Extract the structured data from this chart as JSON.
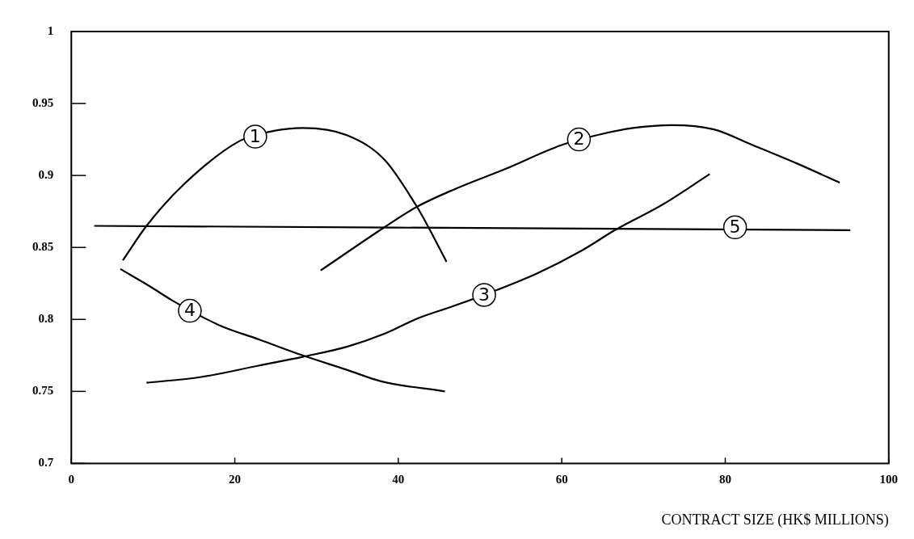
{
  "chart_data": {
    "type": "line",
    "xlabel": "CONTRACT SIZE (HK$ MILLIONS)",
    "xlim": [
      0,
      100
    ],
    "xticks": [
      0,
      20,
      40,
      60,
      80,
      100
    ],
    "ylim": [
      0.7,
      1
    ],
    "yticks": [
      0.7,
      0.75,
      0.8,
      0.85,
      0.9,
      0.95,
      1
    ],
    "grid": false,
    "legend": false,
    "marker": "none",
    "line_style": "solid",
    "series": [
      {
        "color": "#000000",
        "x": [
          6.3,
          9.2,
          13.8,
          20.6,
          24.8,
          28.3,
          33.7,
          38.3,
          42.2,
          43.6,
          45.9
        ],
        "values": [
          0.841,
          0.865,
          0.894,
          0.924,
          0.931,
          0.933,
          0.928,
          0.911,
          0.879,
          0.865,
          0.84
        ]
      },
      {
        "color": "#000000",
        "x": [
          30.5,
          38.3,
          42.2,
          46.7,
          53.3,
          59.9,
          64.3,
          68.7,
          73.5,
          78.6,
          83.4,
          88.9,
          94.0
        ],
        "values": [
          0.834,
          0.864,
          0.878,
          0.89,
          0.905,
          0.921,
          0.928,
          0.933,
          0.935,
          0.932,
          0.921,
          0.908,
          0.895
        ]
      },
      {
        "color": "#000000",
        "x": [
          9.2,
          15.9,
          23.0,
          28.3,
          33.7,
          38.3,
          42.5,
          46.6,
          50.5,
          57.0,
          62.5,
          66.5,
          72.4,
          78.1
        ],
        "values": [
          0.756,
          0.76,
          0.768,
          0.774,
          0.781,
          0.79,
          0.801,
          0.809,
          0.817,
          0.832,
          0.848,
          0.862,
          0.88,
          0.901
        ]
      },
      {
        "color": "#000000",
        "x": [
          6.0,
          9.6,
          12.4,
          18.1,
          23.0,
          28.3,
          33.7,
          37.9,
          45.7
        ],
        "values": [
          0.835,
          0.823,
          0.813,
          0.796,
          0.786,
          0.775,
          0.765,
          0.757,
          0.75
        ]
      },
      {
        "color": "#000000",
        "x": [
          2.8,
          95.3
        ],
        "values": [
          0.865,
          0.862
        ]
      }
    ],
    "annotations": [
      {
        "text": "1",
        "x": 22.5,
        "y": 0.927
      },
      {
        "text": "2",
        "x": 62.1,
        "y": 0.925
      },
      {
        "text": "3",
        "x": 50.5,
        "y": 0.817
      },
      {
        "text": "4",
        "x": 14.5,
        "y": 0.806
      },
      {
        "text": "5",
        "x": 81.2,
        "y": 0.864
      }
    ]
  }
}
